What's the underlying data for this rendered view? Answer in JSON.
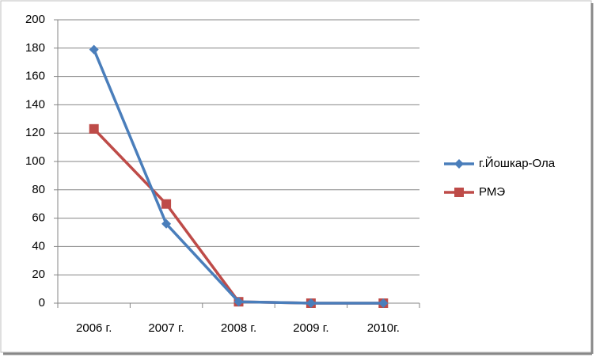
{
  "chart_data": {
    "type": "line",
    "categories": [
      "2006 г.",
      "2007 г.",
      "2008 г.",
      "2009 г.",
      "2010г."
    ],
    "series": [
      {
        "name": "г.Йошкар-Ола",
        "color": "#4a7ebb",
        "marker": "diamond",
        "values": [
          179,
          56,
          1,
          0,
          0
        ]
      },
      {
        "name": "РМЭ",
        "color": "#be4b48",
        "marker": "square",
        "values": [
          123,
          70,
          1,
          0,
          0
        ]
      }
    ],
    "ylim": [
      0,
      200
    ],
    "yticks": [
      0,
      20,
      40,
      60,
      80,
      100,
      120,
      140,
      160,
      180,
      200
    ],
    "grid": true,
    "legend": "right"
  }
}
